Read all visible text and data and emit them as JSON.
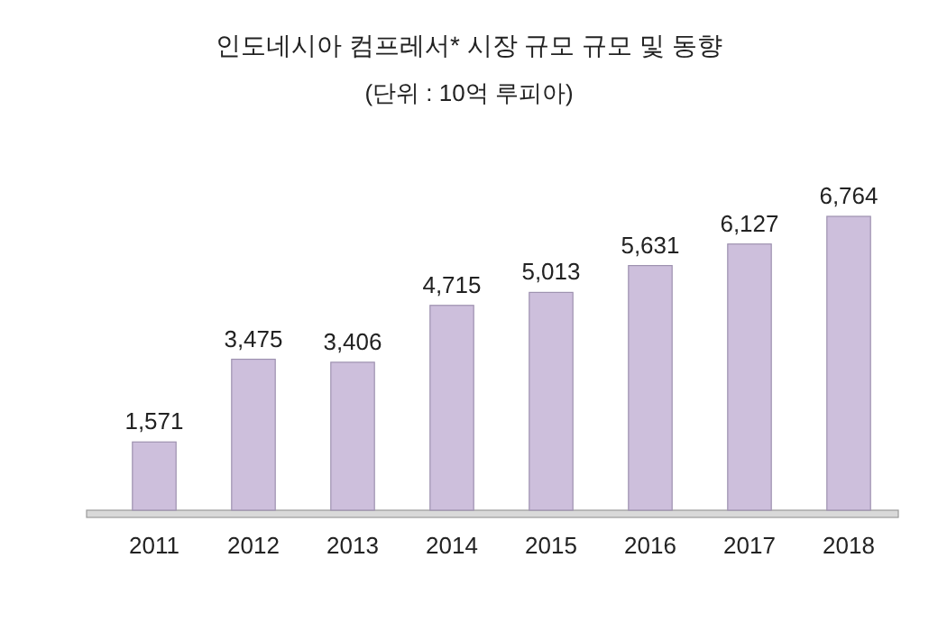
{
  "chart_data": {
    "type": "bar",
    "title": "인도네시아 컴프레서* 시장 규모 규모 및 동향",
    "subtitle": "(단위 : 10억 루피아)",
    "categories": [
      "2011",
      "2012",
      "2013",
      "2014",
      "2015",
      "2016",
      "2017",
      "2018"
    ],
    "values": [
      1571,
      3475,
      3406,
      4715,
      5013,
      5631,
      6127,
      6764
    ],
    "value_labels": [
      "1,571",
      "3,475",
      "3,406",
      "4,715",
      "5,013",
      "5,631",
      "6,127",
      "6,764"
    ],
    "color": "#cdbfdc"
  }
}
